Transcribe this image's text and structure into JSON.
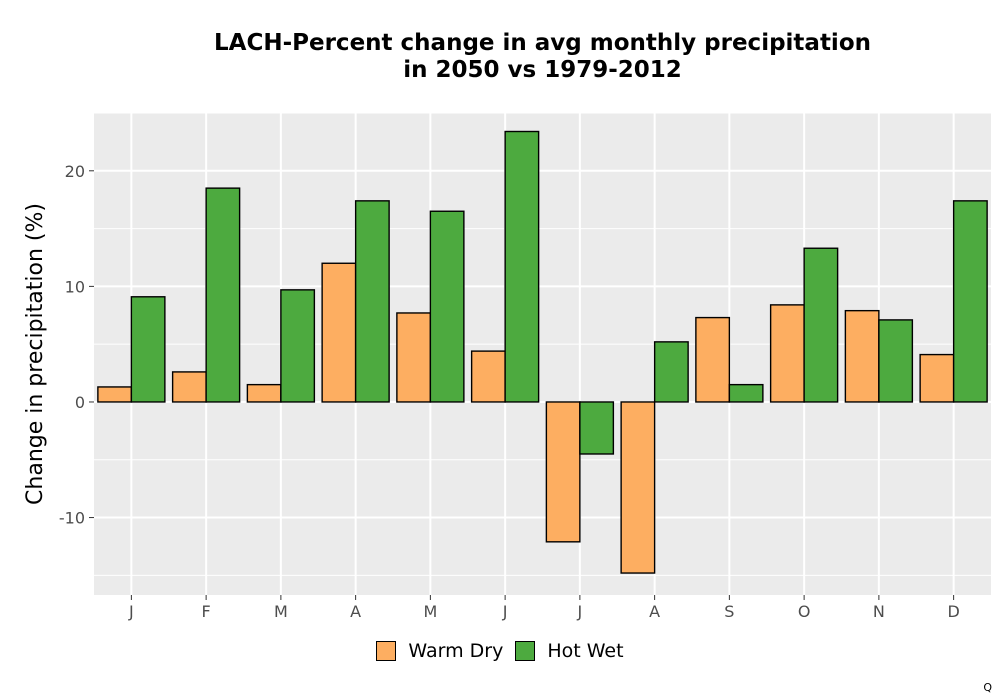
{
  "chart_data": {
    "type": "bar",
    "title_lines": [
      "LACH-Percent change in avg monthly precipitation",
      "in 2050 vs 1979-2012"
    ],
    "xlabel": "",
    "ylabel": "Change in precipitation (%)",
    "categories": [
      "J",
      "F",
      "M",
      "A",
      "M",
      "J",
      "J",
      "A",
      "S",
      "O",
      "N",
      "D"
    ],
    "series": [
      {
        "name": "Warm Dry",
        "color": "#FDAE61",
        "values": [
          1.3,
          2.6,
          1.5,
          12.0,
          7.7,
          4.4,
          -12.1,
          -14.8,
          7.3,
          8.4,
          7.9,
          4.1
        ]
      },
      {
        "name": "Hot Wet",
        "color": "#4DAA3F",
        "values": [
          9.1,
          18.5,
          9.7,
          17.4,
          16.5,
          23.4,
          -4.5,
          5.2,
          1.5,
          13.3,
          7.1,
          17.4
        ]
      }
    ],
    "ylim": [
      -16.7,
      25.0
    ],
    "yticks": [
      -10,
      0,
      10,
      20
    ],
    "grid": true,
    "legend_position": "bottom"
  },
  "corner_mark": "Q"
}
